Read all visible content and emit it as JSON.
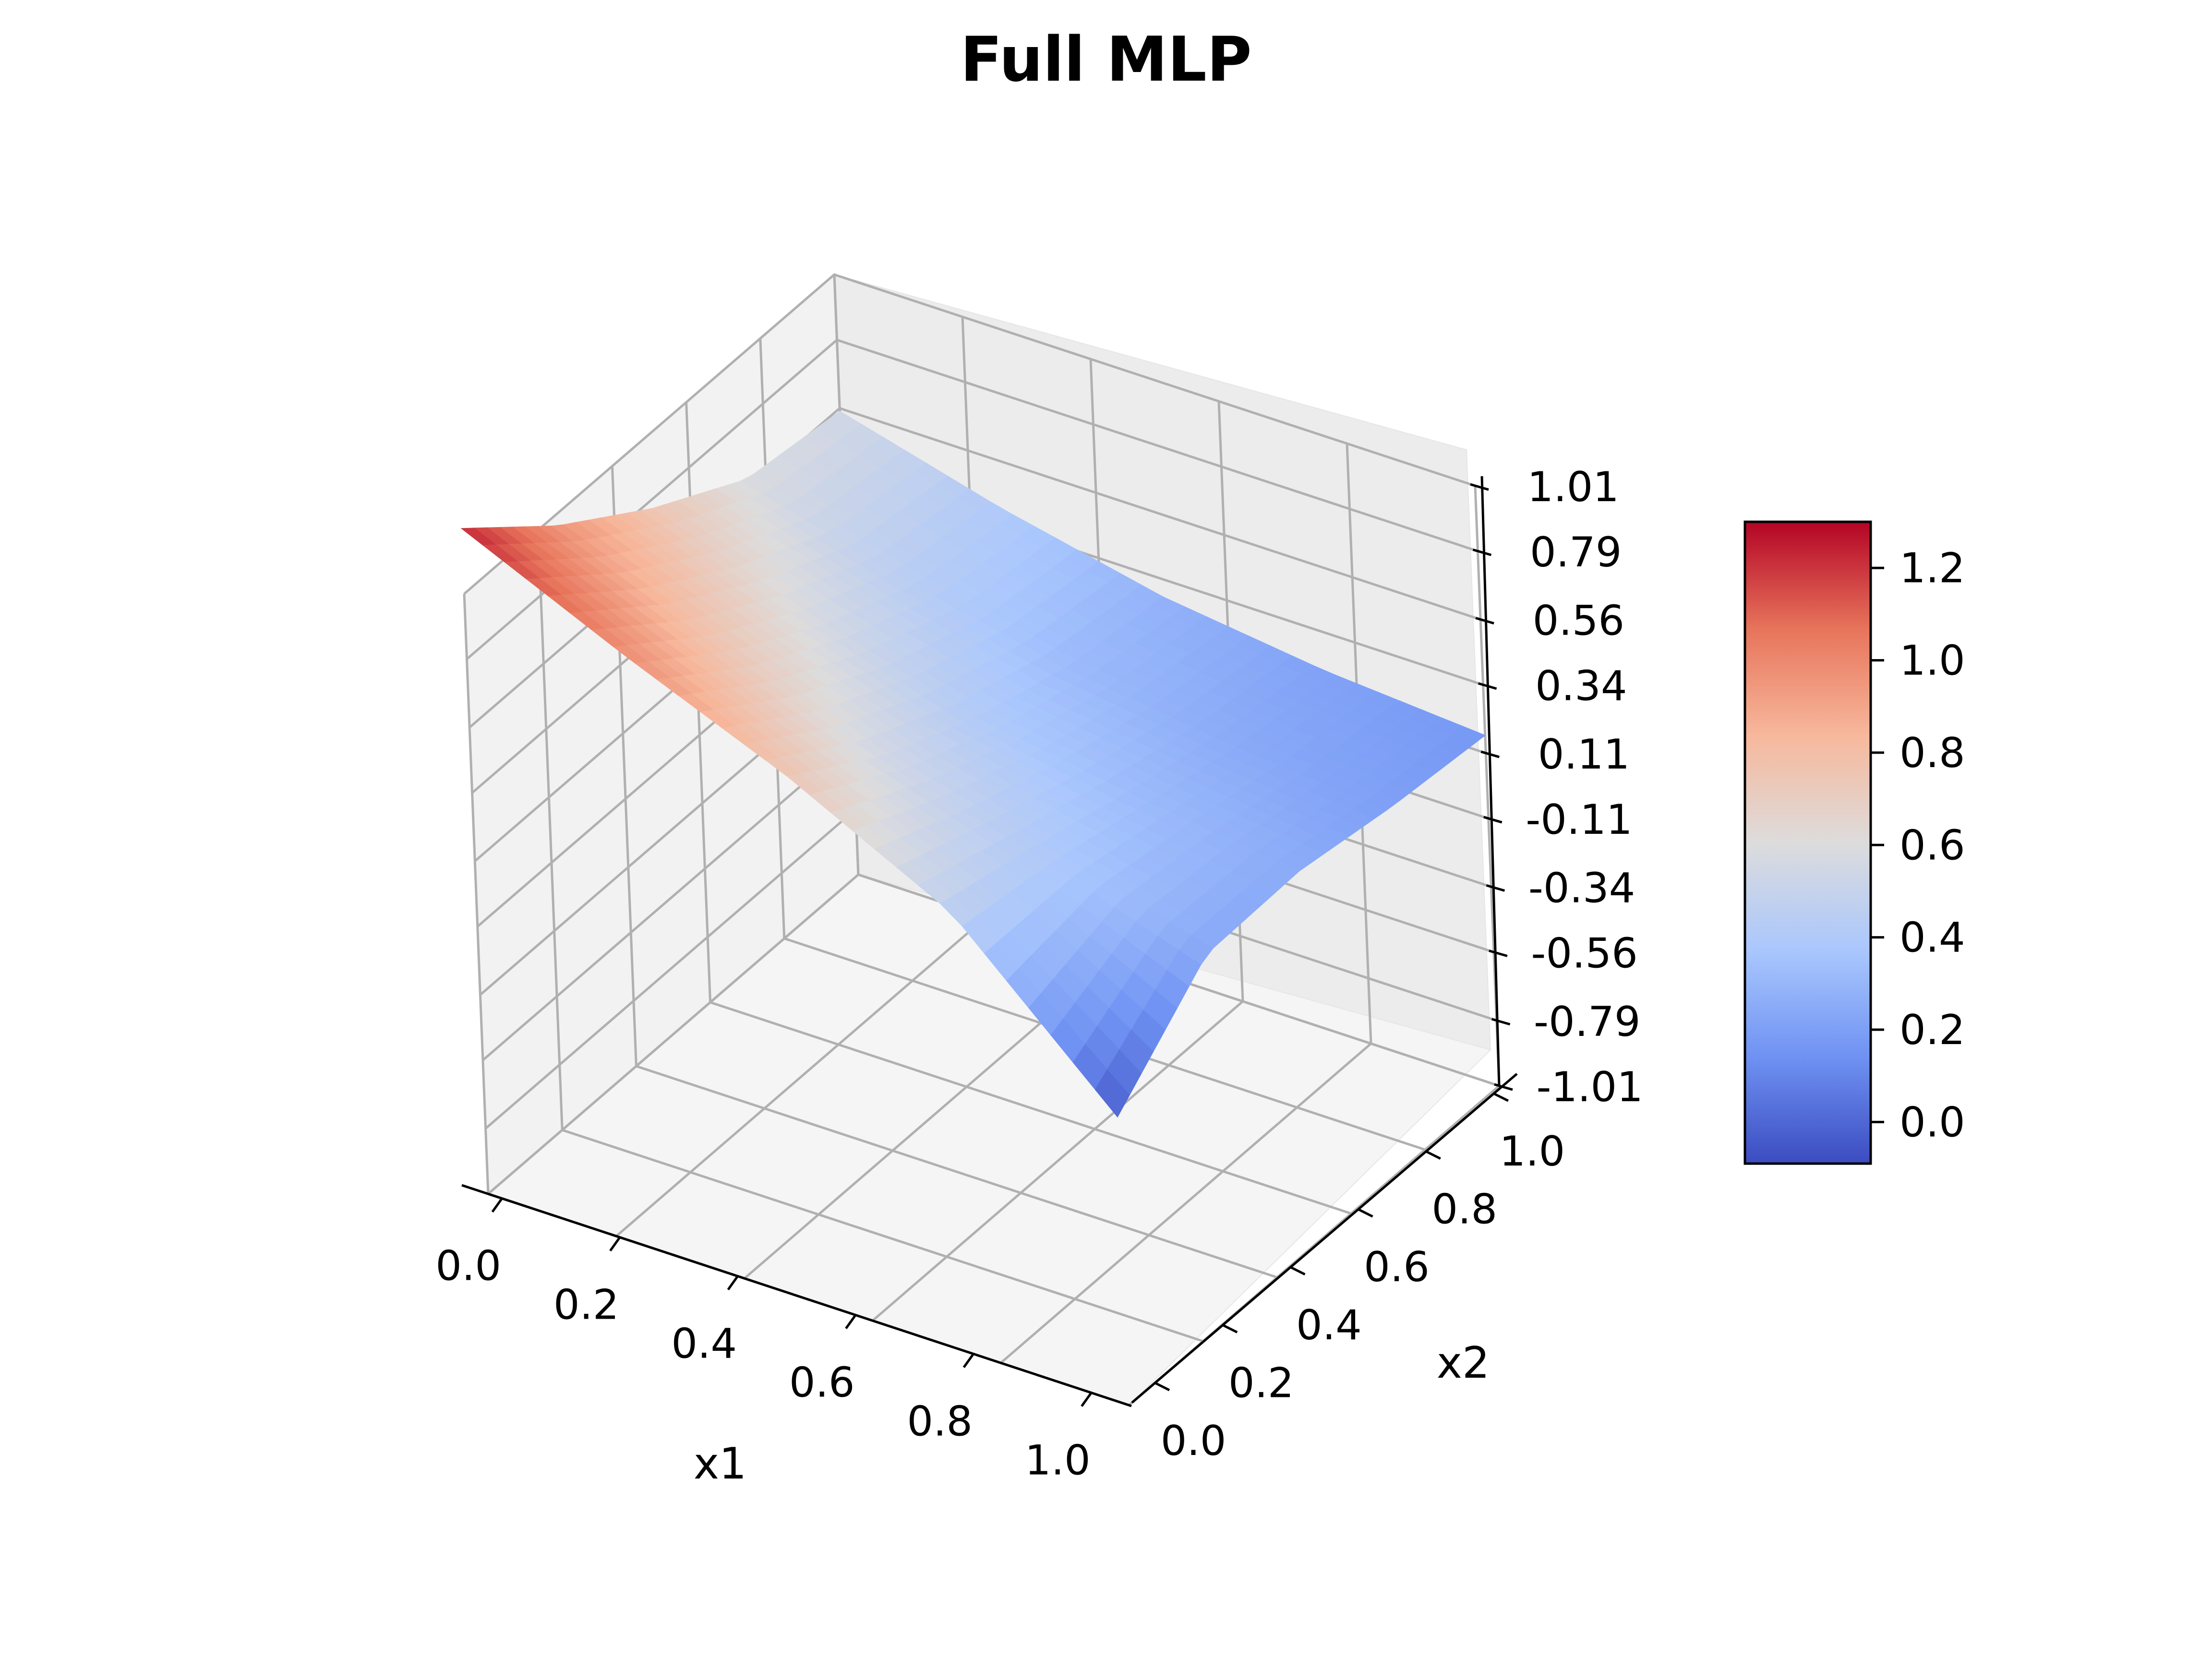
{
  "chart_data": {
    "type": "surface3d",
    "title": "Full MLP",
    "xlabel": "x1",
    "ylabel": "x2",
    "zlabel": "",
    "xlim": [
      0.0,
      1.0
    ],
    "ylim": [
      0.0,
      1.0
    ],
    "zlim": [
      -1.01,
      1.01
    ],
    "x_ticks": [
      "0.0",
      "0.2",
      "0.4",
      "0.6",
      "0.8",
      "1.0"
    ],
    "y_ticks": [
      "0.0",
      "0.2",
      "0.4",
      "0.6",
      "0.8",
      "1.0"
    ],
    "z_ticks": [
      "-1.01",
      "-0.79",
      "-0.56",
      "-0.34",
      "-0.11",
      "0.11",
      "0.34",
      "0.56",
      "0.79",
      "1.01"
    ],
    "z_tick_values": [
      -1.01,
      -0.79,
      -0.56,
      -0.34,
      -0.11,
      0.11,
      0.34,
      0.56,
      0.79,
      1.01
    ],
    "grid": true,
    "colormap": "coolwarm",
    "colormap_stops": [
      "#3b4cc0",
      "#6f92f3",
      "#aac7fd",
      "#dddcdc",
      "#f7b89c",
      "#e7745b",
      "#b40426"
    ],
    "colorbar": {
      "range": [
        -0.09,
        1.3
      ],
      "tick_values": [
        0.0,
        0.2,
        0.4,
        0.6,
        0.8,
        1.0,
        1.2
      ],
      "tick_labels": [
        "0.0",
        "0.2",
        "0.4",
        "0.6",
        "0.8",
        "1.0",
        "1.2"
      ]
    },
    "surface_samples": {
      "x1": [
        0.0,
        0.25,
        0.5,
        0.75,
        1.0
      ],
      "x2": [
        0.0,
        0.25,
        0.5,
        0.75,
        1.0
      ],
      "z": [
        [
          1.23,
          0.97,
          0.76,
          0.59,
          0.55
        ],
        [
          0.98,
          0.75,
          0.57,
          0.44,
          0.4
        ],
        [
          0.75,
          0.55,
          0.41,
          0.32,
          0.28
        ],
        [
          0.47,
          0.4,
          0.32,
          0.25,
          0.21
        ],
        [
          -0.04,
          0.24,
          0.25,
          0.2,
          0.17
        ]
      ]
    }
  }
}
